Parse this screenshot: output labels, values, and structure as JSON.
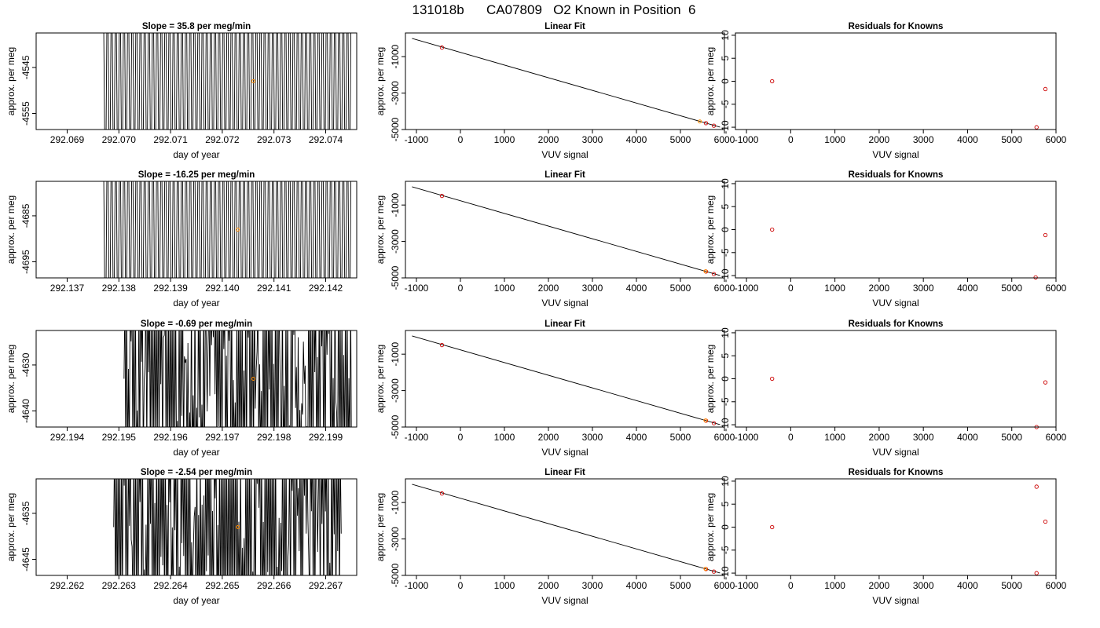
{
  "figure_title": "131018b      CA07809   O2 Known in Position  6",
  "colors": {
    "trace": "#000000",
    "highlight": "#ff8c00",
    "known_point": "#cc0000",
    "axis": "#000000"
  },
  "chart_data": [
    {
      "type": "line",
      "row": 0,
      "col": 0,
      "title": "Slope =  35.8  per meg/min",
      "xlabel": "day of year",
      "ylabel": "approx. per meg",
      "xlim": [
        292.0684,
        292.0746
      ],
      "ylim": [
        -4558.5,
        -4537.5
      ],
      "xticks": [
        "292.069",
        "292.070",
        "292.071",
        "292.072",
        "292.073",
        "292.074"
      ],
      "yticks": [
        "-4545",
        "-4555"
      ],
      "xrange_data": [
        292.0697,
        292.0745
      ],
      "trace_style": "sparse",
      "highlight_point": {
        "x": 292.0726,
        "y": -4548
      }
    },
    {
      "type": "line",
      "row": 0,
      "col": 1,
      "title": "Linear Fit",
      "xlabel": "VUV signal",
      "ylabel": "approx. per meg",
      "xlim": [
        -1250,
        6000
      ],
      "ylim": [
        -5000,
        300
      ],
      "xticks": [
        "-1000",
        "0",
        "1000",
        "2000",
        "3000",
        "4000",
        "5000",
        "6000"
      ],
      "yticks": [
        "-1000",
        "-3000",
        "-5000"
      ],
      "fit_line": {
        "x": [
          -1100,
          5900
        ],
        "y": [
          -0.2,
          -4870
        ]
      },
      "points": [
        {
          "x": -420,
          "y": -500
        },
        {
          "x": 5580,
          "y": -4650
        },
        {
          "x": 5760,
          "y": -4790
        }
      ],
      "highlight_point": {
        "x": 5440,
        "y": -4560
      }
    },
    {
      "type": "scatter",
      "row": 0,
      "col": 2,
      "title": "Residuals for Knowns",
      "xlabel": "VUV signal",
      "ylabel": "approx. per meg",
      "xlim": [
        -1250,
        6000
      ],
      "ylim": [
        -10.5,
        10.5
      ],
      "xticks": [
        "-1000",
        "0",
        "1000",
        "2000",
        "3000",
        "4000",
        "5000",
        "6000"
      ],
      "yticks": [
        "10",
        "5",
        "0",
        "-5",
        "-10"
      ],
      "points": [
        {
          "x": -420,
          "y": 0
        },
        {
          "x": 5760,
          "y": -1.7
        },
        {
          "x": 5560,
          "y": -10
        }
      ]
    },
    {
      "type": "line",
      "row": 1,
      "col": 0,
      "title": "Slope =  -16.25  per meg/min",
      "xlabel": "day of year",
      "ylabel": "approx. per meg",
      "xlim": [
        292.1364,
        292.1426
      ],
      "ylim": [
        -4698.5,
        -4677.5
      ],
      "xticks": [
        "292.137",
        "292.138",
        "292.139",
        "292.140",
        "292.141",
        "292.142"
      ],
      "yticks": [
        "-4685",
        "-4695"
      ],
      "xrange_data": [
        292.1377,
        292.1425
      ],
      "trace_style": "sparse",
      "highlight_point": {
        "x": 292.1403,
        "y": -4688
      }
    },
    {
      "type": "line",
      "row": 1,
      "col": 1,
      "title": "Linear Fit",
      "xlabel": "VUV signal",
      "ylabel": "approx. per meg",
      "xlim": [
        -1250,
        6000
      ],
      "ylim": [
        -5000,
        300
      ],
      "xticks": [
        "-1000",
        "0",
        "1000",
        "2000",
        "3000",
        "4000",
        "5000",
        "6000"
      ],
      "yticks": [
        "-1000",
        "-3000",
        "-5000"
      ],
      "fit_line": {
        "x": [
          -1100,
          5900
        ],
        "y": [
          -0.2,
          -4870
        ]
      },
      "points": [
        {
          "x": -420,
          "y": -500
        },
        {
          "x": 5580,
          "y": -4650
        },
        {
          "x": 5760,
          "y": -4790
        }
      ],
      "highlight_point": {
        "x": 5570,
        "y": -4640
      }
    },
    {
      "type": "scatter",
      "row": 1,
      "col": 2,
      "title": "Residuals for Knowns",
      "xlabel": "VUV signal",
      "ylabel": "approx. per meg",
      "xlim": [
        -1250,
        6000
      ],
      "ylim": [
        -10.5,
        10.5
      ],
      "xticks": [
        "-1000",
        "0",
        "1000",
        "2000",
        "3000",
        "4000",
        "5000",
        "6000"
      ],
      "yticks": [
        "10",
        "5",
        "0",
        "-5",
        "-10"
      ],
      "points": [
        {
          "x": -420,
          "y": 0
        },
        {
          "x": 5760,
          "y": -1.2
        },
        {
          "x": 5540,
          "y": -10.4
        }
      ]
    },
    {
      "type": "line",
      "row": 2,
      "col": 0,
      "title": "Slope =  -0.69  per meg/min",
      "xlabel": "day of year",
      "ylabel": "approx. per meg",
      "xlim": [
        292.1934,
        292.1996
      ],
      "ylim": [
        -4643.5,
        -4622.5
      ],
      "xticks": [
        "292.194",
        "292.195",
        "292.196",
        "292.197",
        "292.198",
        "292.199"
      ],
      "yticks": [
        "-4630",
        "-4640"
      ],
      "xrange_data": [
        292.1951,
        292.1995
      ],
      "trace_style": "dense",
      "highlight_point": {
        "x": 292.1976,
        "y": -4633
      }
    },
    {
      "type": "line",
      "row": 2,
      "col": 1,
      "title": "Linear Fit",
      "xlabel": "VUV signal",
      "ylabel": "approx. per meg",
      "xlim": [
        -1250,
        6000
      ],
      "ylim": [
        -5000,
        300
      ],
      "xticks": [
        "-1000",
        "0",
        "1000",
        "2000",
        "3000",
        "4000",
        "5000",
        "6000"
      ],
      "yticks": [
        "-1000",
        "-3000",
        "-5000"
      ],
      "fit_line": {
        "x": [
          -1100,
          5900
        ],
        "y": [
          -0.2,
          -4870
        ]
      },
      "points": [
        {
          "x": -420,
          "y": -500
        },
        {
          "x": 5580,
          "y": -4650
        },
        {
          "x": 5760,
          "y": -4790
        }
      ],
      "highlight_point": {
        "x": 5570,
        "y": -4640
      }
    },
    {
      "type": "scatter",
      "row": 2,
      "col": 2,
      "title": "Residuals for Knowns",
      "xlabel": "VUV signal",
      "ylabel": "approx. per meg",
      "xlim": [
        -1250,
        6000
      ],
      "ylim": [
        -10.5,
        10.5
      ],
      "xticks": [
        "-1000",
        "0",
        "1000",
        "2000",
        "3000",
        "4000",
        "5000",
        "6000"
      ],
      "yticks": [
        "10",
        "5",
        "0",
        "-5",
        "-10"
      ],
      "points": [
        {
          "x": -420,
          "y": 0
        },
        {
          "x": 5760,
          "y": -0.8
        },
        {
          "x": 5560,
          "y": -10.5
        }
      ]
    },
    {
      "type": "line",
      "row": 3,
      "col": 0,
      "title": "Slope =  -2.54  per meg/min",
      "xlabel": "day of year",
      "ylabel": "approx. per meg",
      "xlim": [
        292.2614,
        292.2676
      ],
      "ylim": [
        -4648.5,
        -4627.5
      ],
      "xticks": [
        "292.262",
        "292.263",
        "292.264",
        "292.265",
        "292.266",
        "292.267"
      ],
      "yticks": [
        "-4635",
        "-4645"
      ],
      "xrange_data": [
        292.2629,
        292.2673
      ],
      "trace_style": "dense",
      "highlight_point": {
        "x": 292.2653,
        "y": -4638
      }
    },
    {
      "type": "line",
      "row": 3,
      "col": 1,
      "title": "Linear Fit",
      "xlabel": "VUV signal",
      "ylabel": "approx. per meg",
      "xlim": [
        -1250,
        6000
      ],
      "ylim": [
        -5000,
        300
      ],
      "xticks": [
        "-1000",
        "0",
        "1000",
        "2000",
        "3000",
        "4000",
        "5000",
        "6000"
      ],
      "yticks": [
        "-1000",
        "-3000",
        "-5000"
      ],
      "fit_line": {
        "x": [
          -1100,
          5900
        ],
        "y": [
          -0.2,
          -4870
        ]
      },
      "points": [
        {
          "x": -420,
          "y": -500
        },
        {
          "x": 5580,
          "y": -4650
        },
        {
          "x": 5760,
          "y": -4790
        }
      ],
      "highlight_point": {
        "x": 5570,
        "y": -4640
      }
    },
    {
      "type": "scatter",
      "row": 3,
      "col": 2,
      "title": "Residuals for Knowns",
      "xlabel": "VUV signal",
      "ylabel": "approx. per meg",
      "xlim": [
        -1250,
        6000
      ],
      "ylim": [
        -10.5,
        10.5
      ],
      "xticks": [
        "-1000",
        "0",
        "1000",
        "2000",
        "3000",
        "4000",
        "5000",
        "6000"
      ],
      "yticks": [
        "10",
        "5",
        "0",
        "-5",
        "-10"
      ],
      "points": [
        {
          "x": -420,
          "y": 0
        },
        {
          "x": 5560,
          "y": 8.8
        },
        {
          "x": 5760,
          "y": 1.2
        },
        {
          "x": 5560,
          "y": -10
        }
      ]
    }
  ]
}
